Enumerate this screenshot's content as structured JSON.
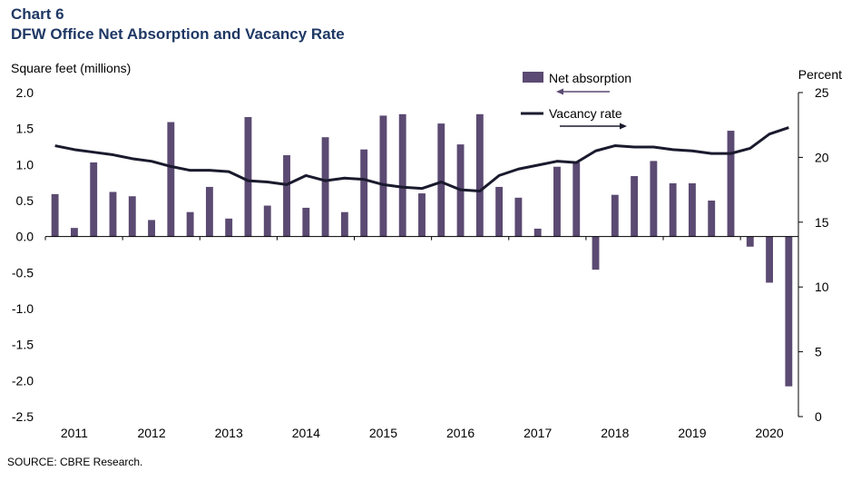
{
  "header": {
    "chart_number": "Chart 6",
    "title": "DFW Office Net Absorption and Vacancy Rate"
  },
  "source": "SOURCE: CBRE Research.",
  "colors": {
    "bar": "#5b4a72",
    "line": "#1a1a2e",
    "arrow": "#5b4a72",
    "title": "#1f3864"
  },
  "chart_data": {
    "type": "bar",
    "title": "DFW Office Net Absorption and Vacancy Rate",
    "y_left_label": "Square feet (millions)",
    "y_right_label": "Percent",
    "y_left_range": [
      -2.5,
      2.0
    ],
    "y_right_range": [
      0,
      25
    ],
    "y_left_ticks": [
      "2.0",
      "1.5",
      "1.0",
      "0.5",
      "0.0",
      "-0.5",
      "-1.0",
      "-1.5",
      "-2.0",
      "-2.5"
    ],
    "y_right_ticks": [
      "25",
      "20",
      "15",
      "10",
      "5",
      "0"
    ],
    "x_tick_labels": [
      "2011",
      "2012",
      "2013",
      "2014",
      "2015",
      "2016",
      "2017",
      "2018",
      "2019",
      "2020"
    ],
    "legend": [
      "Net absorption",
      "Vacancy rate"
    ],
    "grid": false,
    "series": [
      {
        "name": "Net absorption",
        "type": "bar",
        "axis": "left",
        "values": [
          0.59,
          0.12,
          1.03,
          0.62,
          0.56,
          0.23,
          1.59,
          0.34,
          0.69,
          0.25,
          1.66,
          0.43,
          1.13,
          0.4,
          1.38,
          0.34,
          1.21,
          1.68,
          1.7,
          0.6,
          1.57,
          1.28,
          1.7,
          0.69,
          0.54,
          0.11,
          0.97,
          1.03,
          -0.46,
          0.58,
          0.84,
          1.05,
          0.74,
          0.74,
          0.5,
          1.47,
          -0.14,
          -0.64,
          -2.08
        ]
      },
      {
        "name": "Vacancy rate",
        "type": "line",
        "axis": "right",
        "values": [
          20.9,
          20.6,
          20.4,
          20.2,
          19.9,
          19.7,
          19.3,
          19.0,
          19.0,
          18.9,
          18.2,
          18.1,
          17.9,
          18.6,
          18.2,
          18.4,
          18.3,
          17.9,
          17.7,
          17.6,
          18.1,
          17.5,
          17.4,
          18.6,
          19.1,
          19.4,
          19.7,
          19.6,
          20.5,
          20.9,
          20.8,
          20.8,
          20.6,
          20.5,
          20.3,
          20.3,
          20.7,
          21.8,
          22.3
        ]
      }
    ]
  }
}
